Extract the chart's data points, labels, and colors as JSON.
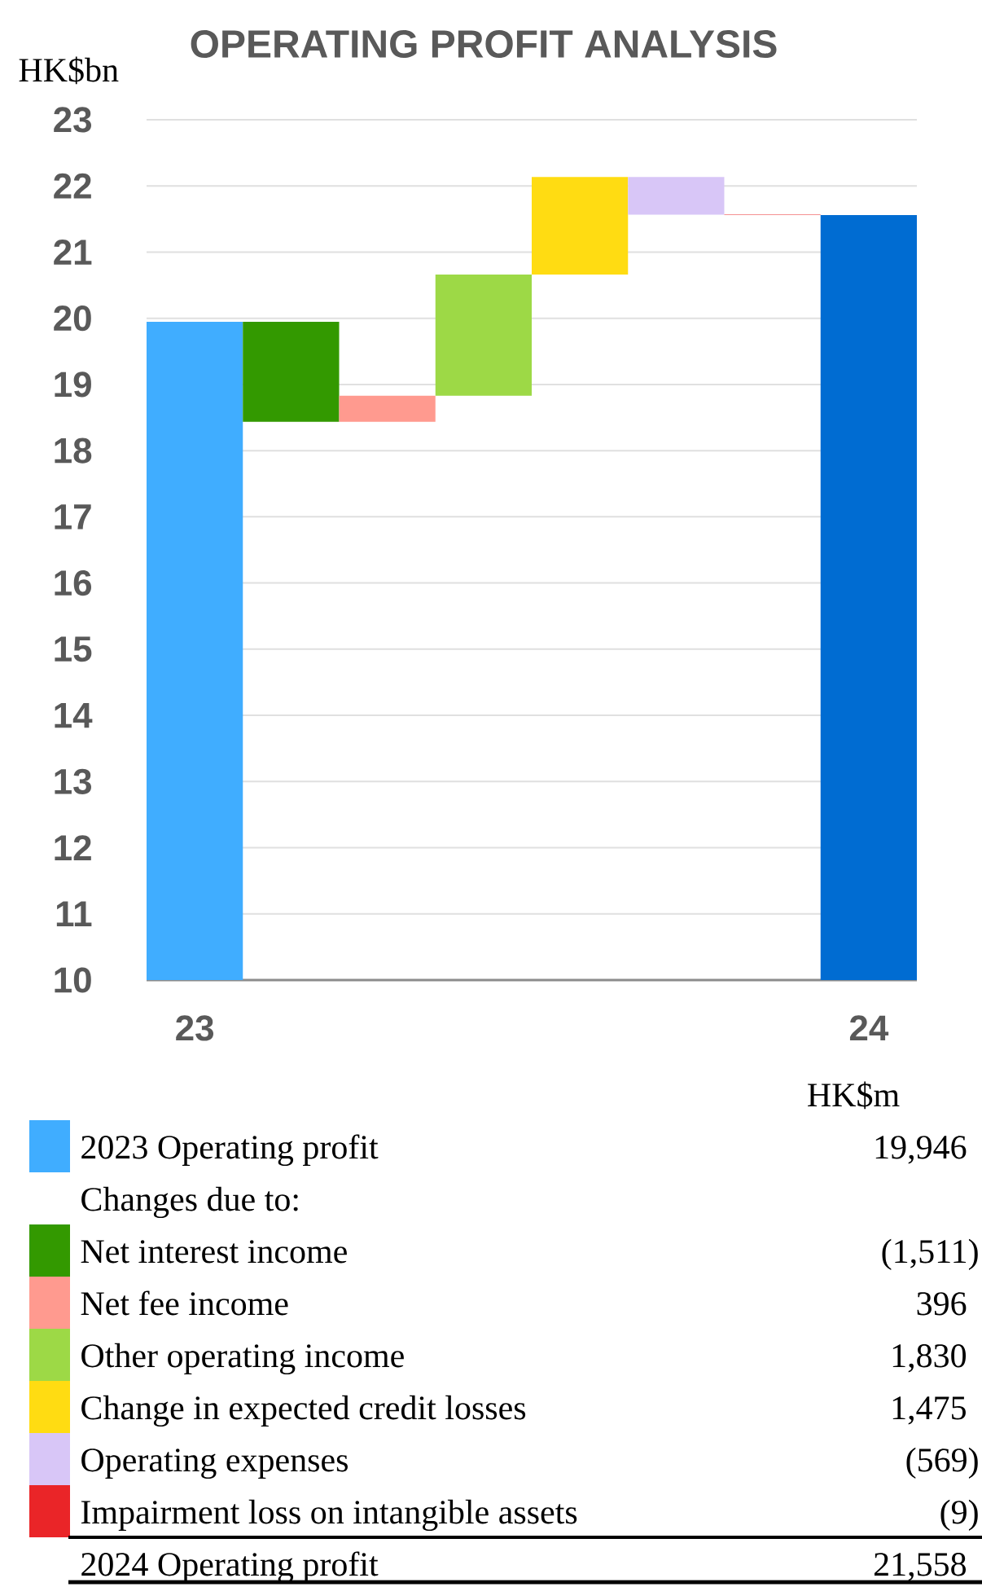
{
  "chart_data": {
    "type": "bar",
    "title": "OPERATING PROFIT ANALYSIS",
    "ylabel": "HK$bn",
    "categories": [
      "23",
      null,
      null,
      null,
      null,
      null,
      null,
      "24"
    ],
    "series": [
      {
        "name": "2023 Operating profit",
        "color": "#40adff",
        "values": [
          19.946,
          null,
          null,
          null,
          null,
          null,
          null,
          null
        ]
      },
      {
        "name": "Net interest income",
        "color": "#339900",
        "values": [
          null,
          -1.511,
          null,
          null,
          null,
          null,
          null,
          null
        ],
        "base": [
          null,
          19.946,
          null,
          null,
          null,
          null,
          null,
          null
        ]
      },
      {
        "name": "Net fee income",
        "color": "#ff9a8f",
        "values": [
          null,
          null,
          0.396,
          null,
          null,
          null,
          null,
          null
        ],
        "base": [
          null,
          null,
          18.435,
          null,
          null,
          null,
          null,
          null
        ]
      },
      {
        "name": "Other operating income",
        "color": "#9dd946",
        "values": [
          null,
          null,
          null,
          1.83,
          null,
          null,
          null,
          null
        ],
        "base": [
          null,
          null,
          null,
          18.831,
          null,
          null,
          null,
          null
        ]
      },
      {
        "name": "Change in expected credit losses",
        "color": "#ffdc12",
        "values": [
          null,
          null,
          null,
          null,
          1.475,
          null,
          null,
          null
        ],
        "base": [
          null,
          null,
          null,
          null,
          20.661,
          null,
          null,
          null
        ]
      },
      {
        "name": "Operating expenses",
        "color": "#d8c6f7",
        "values": [
          null,
          null,
          null,
          null,
          null,
          -0.569,
          null,
          null
        ],
        "base": [
          null,
          null,
          null,
          null,
          null,
          22.136,
          null,
          null
        ]
      },
      {
        "name": "Impairment loss on intangible assets",
        "color": "#ea2528",
        "values": [
          null,
          null,
          null,
          null,
          null,
          null,
          -0.009,
          null
        ],
        "base": [
          null,
          null,
          null,
          null,
          null,
          null,
          21.567,
          null
        ]
      },
      {
        "color": "#006cd2",
        "values": [
          null,
          null,
          null,
          null,
          null,
          null,
          null,
          21.558
        ]
      }
    ],
    "ylim": [
      10,
      23
    ],
    "yticks": [
      10,
      11,
      12,
      13,
      14,
      15,
      16,
      17,
      18,
      19,
      20,
      21,
      22,
      23
    ],
    "grid": "y",
    "legend": "bottom",
    "annotations": [
      "HK$m",
      "Changes due to:",
      "2024 Operating profit",
      "19,946",
      "(1,511)",
      "396",
      "1,830",
      "1,475",
      "(569)",
      "(9)",
      "21,558"
    ]
  }
}
